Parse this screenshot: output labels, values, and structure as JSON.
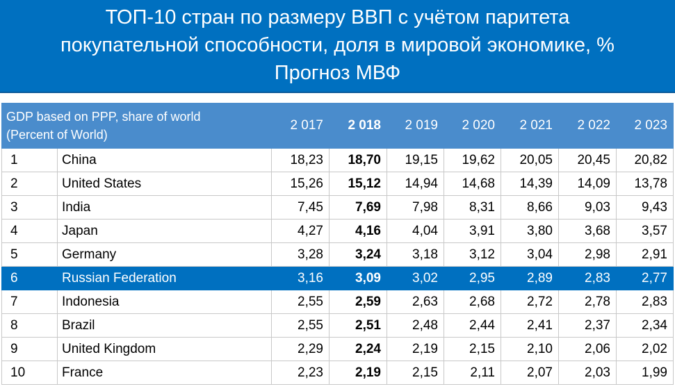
{
  "title": [
    "ТОП-10 стран по размеру ВВП с учётом паритета",
    "покупательной способности, доля в мировой экономике, %",
    "Прогноз МВФ"
  ],
  "table": {
    "header": {
      "label": [
        "GDP based on PPP, share of world",
        "(Percent of World)"
      ],
      "years": [
        "2 017",
        "2 018",
        "2 019",
        "2 020",
        "2 021",
        "2 022",
        "2 023"
      ]
    },
    "rows": [
      [
        "1",
        "China",
        "18,23",
        "18,70",
        "19,15",
        "19,62",
        "20,05",
        "20,45",
        "20,82"
      ],
      [
        "2",
        "United States",
        "15,26",
        "15,12",
        "14,94",
        "14,68",
        "14,39",
        "14,09",
        "13,78"
      ],
      [
        "3",
        "India",
        "7,45",
        "7,69",
        "7,98",
        "8,31",
        "8,66",
        "9,03",
        "9,43"
      ],
      [
        "4",
        "Japan",
        "4,27",
        "4,16",
        "4,04",
        "3,91",
        "3,80",
        "3,68",
        "3,57"
      ],
      [
        "5",
        "Germany",
        "3,28",
        "3,24",
        "3,18",
        "3,12",
        "3,04",
        "2,98",
        "2,91"
      ],
      [
        "6",
        "Russian Federation",
        "3,16",
        "3,09",
        "3,02",
        "2,95",
        "2,89",
        "2,83",
        "2,77"
      ],
      [
        "7",
        "Indonesia",
        "2,55",
        "2,59",
        "2,63",
        "2,68",
        "2,72",
        "2,78",
        "2,83"
      ],
      [
        "8",
        "Brazil",
        "2,55",
        "2,51",
        "2,48",
        "2,44",
        "2,41",
        "2,37",
        "2,34"
      ],
      [
        "9",
        "United Kingdom",
        "2,29",
        "2,24",
        "2,19",
        "2,15",
        "2,10",
        "2,06",
        "2,02"
      ],
      [
        "10",
        "France",
        "2,23",
        "2,19",
        "2,15",
        "2,11",
        "2,07",
        "2,03",
        "1,99"
      ]
    ]
  }
}
